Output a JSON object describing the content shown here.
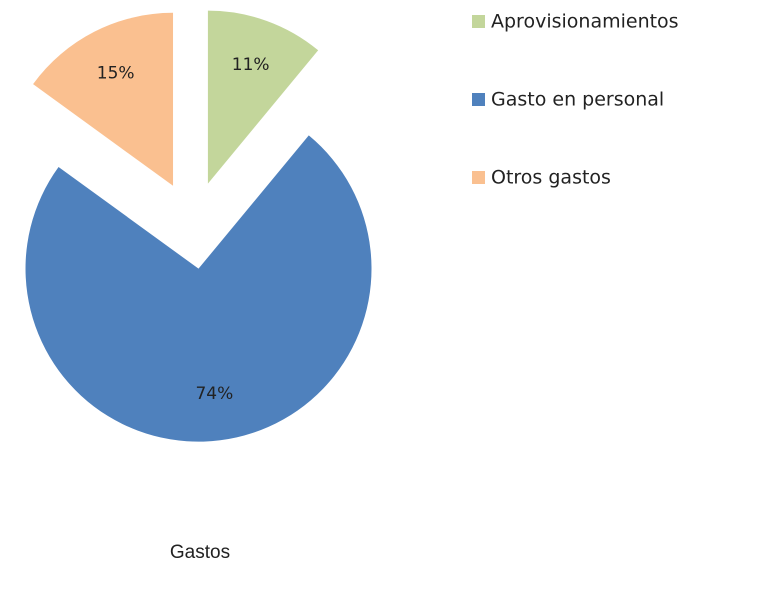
{
  "chart_data": {
    "type": "pie",
    "title": "Gastos",
    "categories": [
      "Aprovisionamientos",
      "Gasto en personal",
      "Otros gastos"
    ],
    "values": [
      11,
      74,
      15
    ],
    "value_labels": [
      "11%",
      "74%",
      "15%"
    ],
    "colors": [
      "#c3d69b",
      "#4f81bd",
      "#fac090"
    ],
    "legend": "right"
  }
}
